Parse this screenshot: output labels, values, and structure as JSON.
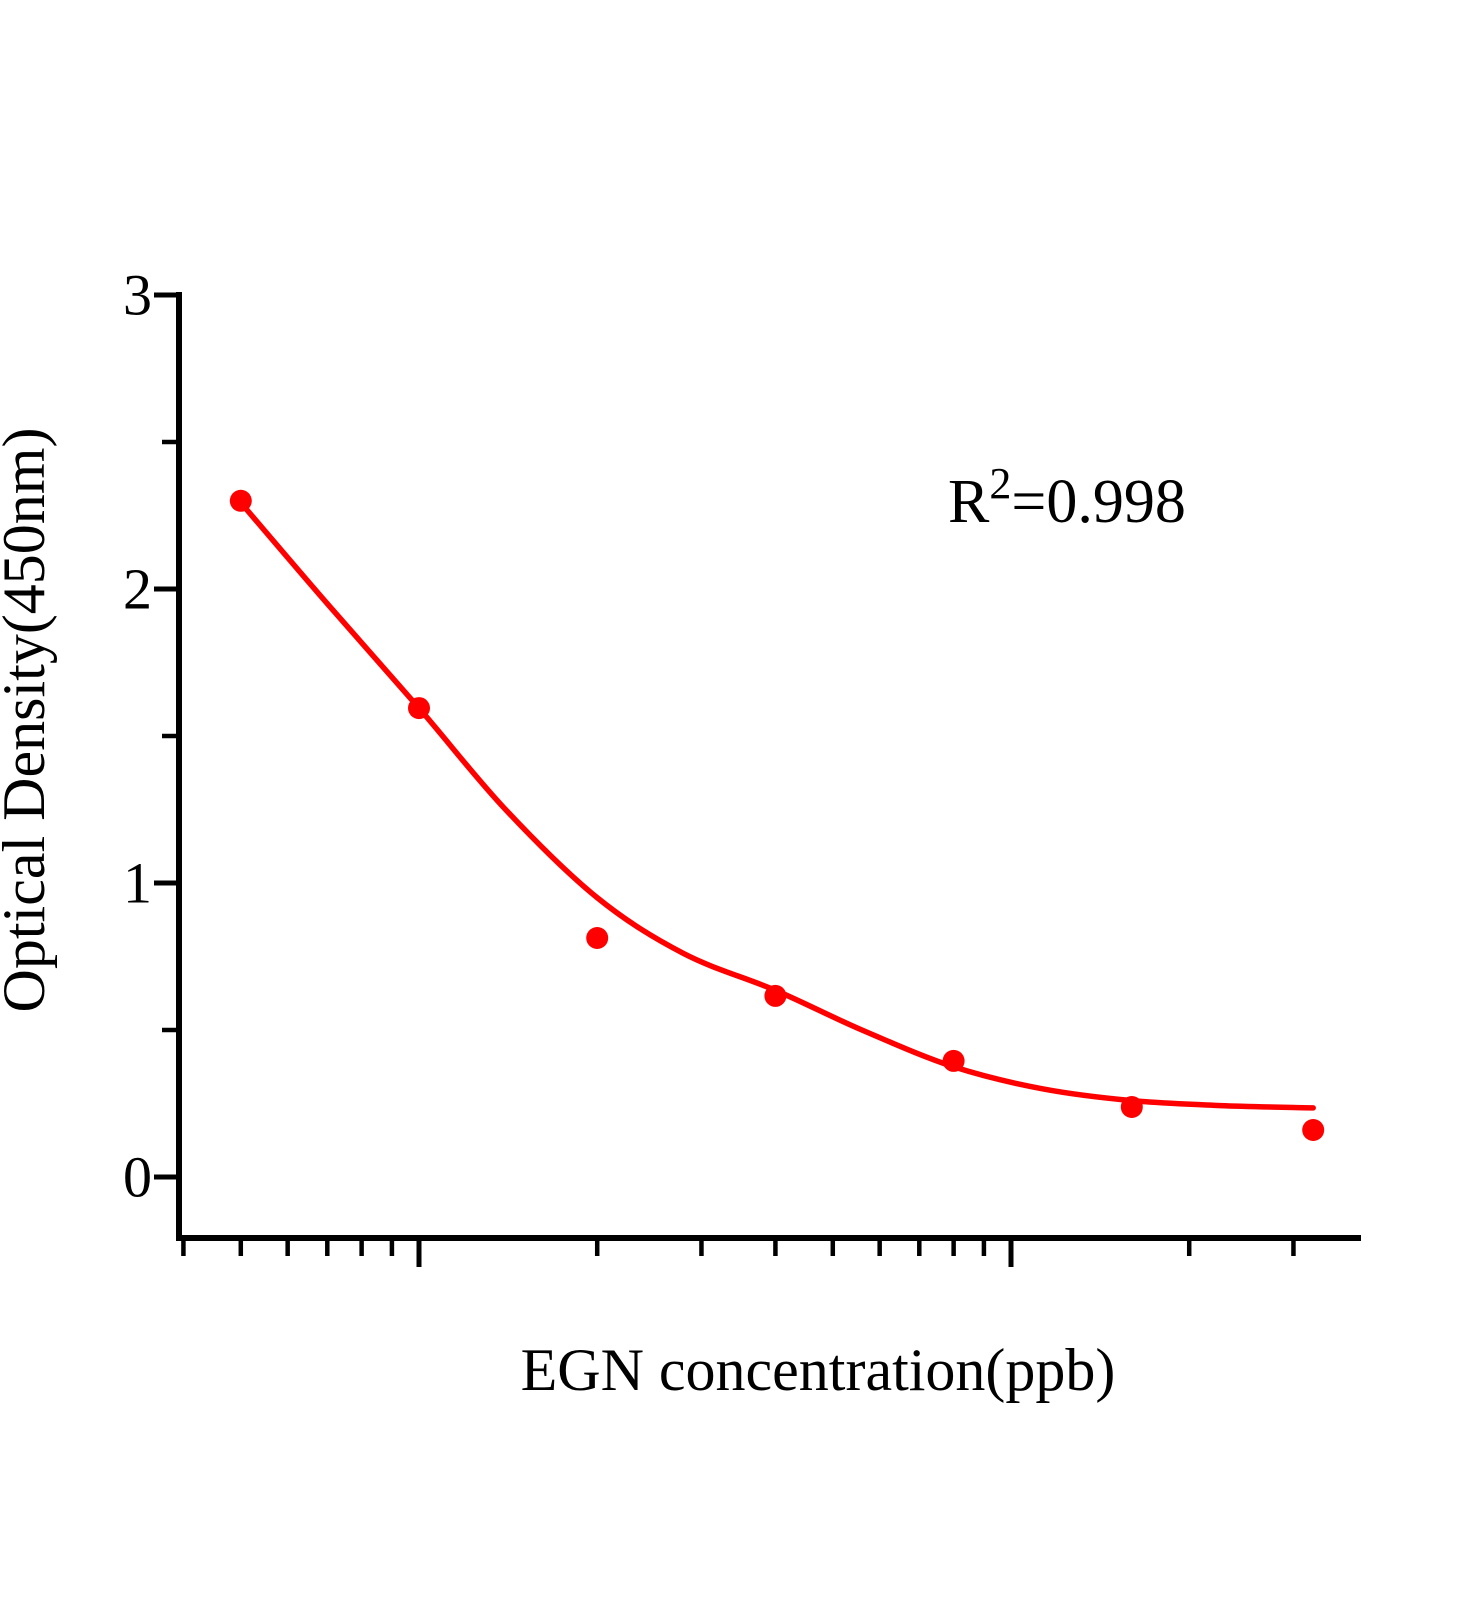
{
  "figure": {
    "background_color": "#ffffff",
    "axis_color": "#000000",
    "series_color": "#ff0000"
  },
  "annotation": {
    "base": "R",
    "exponent": "2",
    "rest": "=0.998"
  },
  "y_axis": {
    "title": "Optical Density(450nm)",
    "tick_labels": [
      "3",
      "2",
      "1",
      "0"
    ],
    "major_tick_values": [
      3,
      2,
      1,
      0
    ],
    "minor_tick_values": [
      2.5,
      1.5,
      0.5
    ]
  },
  "x_axis": {
    "title": "EGN concentration(ppb)",
    "tick_labels": [],
    "scale": "log",
    "unlabeled": true,
    "major_tick_values_estimated": [
      1,
      10
    ],
    "minor_tick_values_estimated": [
      0.4,
      0.5,
      0.6,
      0.7,
      0.8,
      0.9,
      2,
      3,
      4,
      5,
      6,
      7,
      8,
      9,
      20,
      30
    ]
  },
  "chart_data": {
    "type": "scatter",
    "title": "",
    "xlabel": "EGN concentration(ppb)",
    "ylabel": "Optical Density(450nm)",
    "x_scale": "log",
    "x_tick_labels_shown": false,
    "x_values_estimated": true,
    "ylim": [
      -0.2,
      3
    ],
    "y_ticks": [
      0,
      1,
      2,
      3
    ],
    "xlim_ppb_estimated": [
      0.4,
      35
    ],
    "r_squared_label": "R2=0.998",
    "r_squared": 0.998,
    "legend": "none",
    "grid": false,
    "series": [
      {
        "name": "standard-curve-points",
        "marker": "filled-circle",
        "color": "#ff0000",
        "points": [
          {
            "x_ppb": 0.5,
            "od": 2.3
          },
          {
            "x_ppb": 1.0,
            "od": 1.595
          },
          {
            "x_ppb": 2.0,
            "od": 0.813
          },
          {
            "x_ppb": 4.0,
            "od": 0.616
          },
          {
            "x_ppb": 8.0,
            "od": 0.395
          },
          {
            "x_ppb": 16.0,
            "od": 0.238
          },
          {
            "x_ppb": 32.4,
            "od": 0.16
          }
        ]
      }
    ],
    "fit_curve": {
      "name": "4pl-fit-line",
      "color": "#ff0000",
      "samples": [
        {
          "x_ppb": 0.497,
          "od": 2.3
        },
        {
          "x_ppb": 0.7,
          "od": 1.95
        },
        {
          "x_ppb": 1.0,
          "od": 1.595
        },
        {
          "x_ppb": 1.4,
          "od": 1.25
        },
        {
          "x_ppb": 2.0,
          "od": 0.95
        },
        {
          "x_ppb": 2.8,
          "od": 0.76
        },
        {
          "x_ppb": 4.0,
          "od": 0.635
        },
        {
          "x_ppb": 5.6,
          "od": 0.5
        },
        {
          "x_ppb": 8.0,
          "od": 0.375
        },
        {
          "x_ppb": 11.3,
          "od": 0.3
        },
        {
          "x_ppb": 16.0,
          "od": 0.26
        },
        {
          "x_ppb": 22.6,
          "od": 0.243
        },
        {
          "x_ppb": 32.4,
          "od": 0.235
        }
      ]
    }
  }
}
